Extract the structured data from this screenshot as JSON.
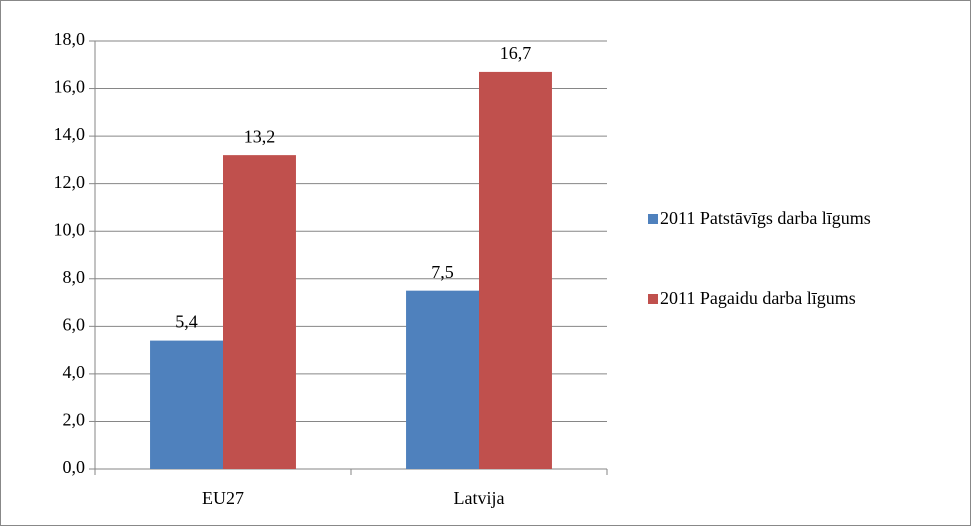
{
  "chart_data": {
    "type": "bar",
    "categories": [
      "EU27",
      "Latvija"
    ],
    "series": [
      {
        "name": "2011 Patstāvīgs darba līgums",
        "color": "#4f81bd",
        "values": [
          5.4,
          7.5
        ],
        "value_labels": [
          "5,4",
          "7,5"
        ]
      },
      {
        "name": "2011 Pagaidu darba līgums",
        "color": "#c0504d",
        "values": [
          13.2,
          16.7
        ],
        "value_labels": [
          "13,2",
          "16,7"
        ]
      }
    ],
    "ylim": [
      0,
      18
    ],
    "yticks": [
      {
        "value": 0,
        "label": "0,0"
      },
      {
        "value": 2,
        "label": "2,0"
      },
      {
        "value": 4,
        "label": "4,0"
      },
      {
        "value": 6,
        "label": "6,0"
      },
      {
        "value": 8,
        "label": "8,0"
      },
      {
        "value": 10,
        "label": "10,0"
      },
      {
        "value": 12,
        "label": "12,0"
      },
      {
        "value": 14,
        "label": "14,0"
      },
      {
        "value": 16,
        "label": "16,0"
      },
      {
        "value": 18,
        "label": "18,0"
      }
    ],
    "grid": true,
    "legend": "right"
  }
}
